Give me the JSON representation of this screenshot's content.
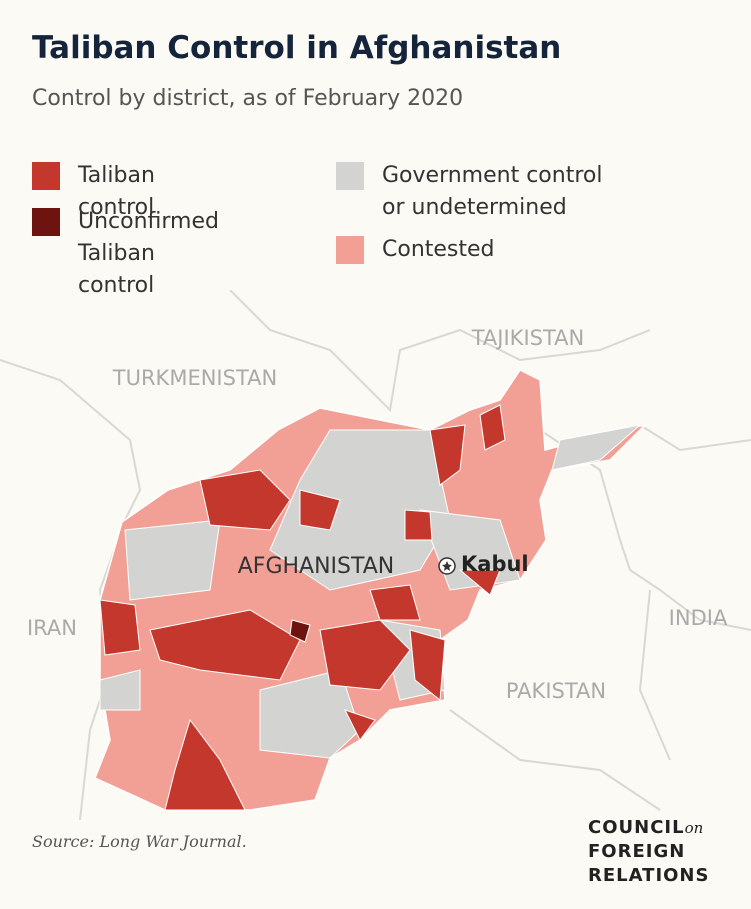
{
  "header": {
    "title": "Taliban Control in Afghanistan",
    "subtitle": "Control by district, as of February 2020"
  },
  "legend": [
    {
      "label": "Taliban control",
      "color": "#c4372c"
    },
    {
      "label": "Unconfirmed Taliban control",
      "color": "#6e1410"
    },
    {
      "label": "Government control or undetermined",
      "color": "#d3d3d1"
    },
    {
      "label": "Contested",
      "color": "#f2a096"
    }
  ],
  "map": {
    "countries": [
      "TURKMENISTAN",
      "TAJIKISTAN",
      "IRAN",
      "INDIA",
      "PAKISTAN"
    ],
    "country_label": "AFGHANISTAN",
    "capital": "Kabul"
  },
  "footer": {
    "source": "Source: Long War Journal.",
    "logo": [
      "COUNCIL",
      "on",
      "FOREIGN",
      "RELATIONS"
    ]
  }
}
